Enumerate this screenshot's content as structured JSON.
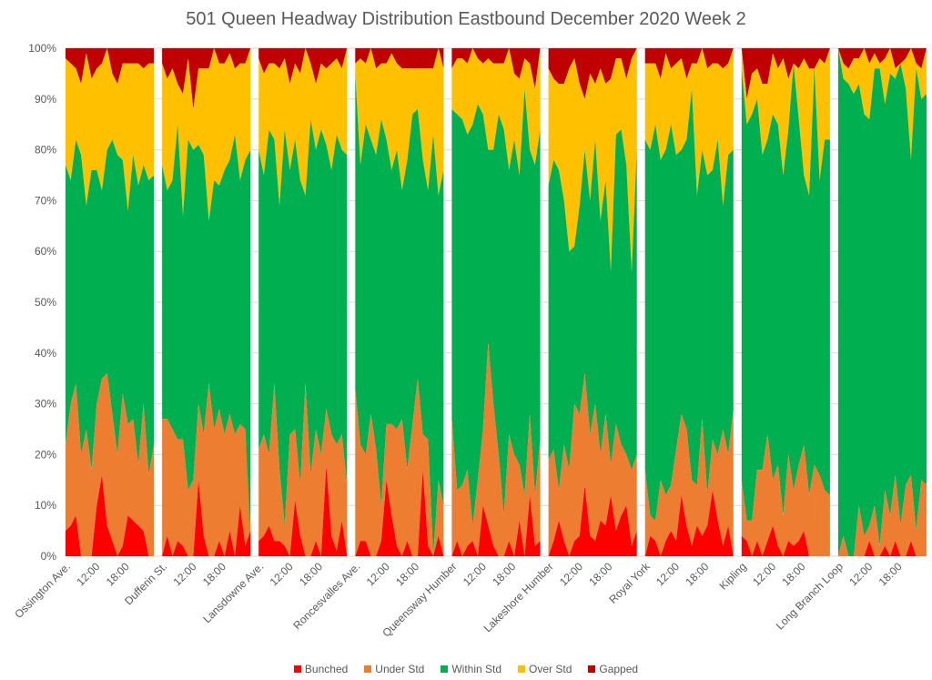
{
  "chart_data": {
    "type": "area",
    "stacked": "percent",
    "title": "501 Queen  Headway Distribution Eastbound December 2020 Week 2",
    "xlabel": "",
    "ylabel": "",
    "ylim": [
      0,
      100
    ],
    "yticks": [
      "0%",
      "10%",
      "20%",
      "30%",
      "40%",
      "50%",
      "60%",
      "70%",
      "80%",
      "90%",
      "100%"
    ],
    "grid": true,
    "legend_position": "bottom",
    "series_names": [
      "Bunched",
      "Under Std",
      "Within Std",
      "Over Std",
      "Gapped"
    ],
    "series_colors": {
      "Bunched": "#ff0000",
      "Under Std": "#ed7d31",
      "Within Std": "#00b050",
      "Over Std": "#ffc000",
      "Gapped": "#c00000"
    },
    "x_tick_labels": [
      "Ossington Ave.",
      "12:00",
      "18:00",
      "Dufferin St.",
      "12:00",
      "18:00",
      "Lansdowne Ave.",
      "12:00",
      "18:00",
      "Roncesvalles Ave.",
      "12:00",
      "18:00",
      "Queensway Humber",
      "12:00",
      "18:00",
      "Lakeshore Humber",
      "12:00",
      "18:00",
      "Royal York",
      "12:00",
      "18:00",
      "Kipling",
      "12:00",
      "18:00",
      "Long Branch Loop",
      "12:00",
      "18:00"
    ],
    "stations": [
      {
        "name": "Ossington Ave.",
        "note": "cumulative upper bounds per sample: bunched, under, within, over (gapped fills to 100)",
        "bunched": [
          5,
          6,
          8,
          0,
          0,
          0,
          10,
          16,
          6,
          3,
          0,
          2,
          8,
          7,
          6,
          5,
          0,
          0
        ],
        "under": [
          22,
          30,
          34,
          20,
          25,
          17,
          30,
          35,
          36,
          28,
          20,
          32,
          26,
          27,
          18,
          30,
          16,
          22
        ],
        "within": [
          77,
          74,
          82,
          79,
          69,
          76,
          76,
          72,
          80,
          82,
          79,
          78,
          68,
          79,
          73,
          77,
          74,
          75
        ],
        "over": [
          98,
          97,
          96,
          93,
          99,
          94,
          96,
          97,
          100,
          95,
          93,
          97,
          97,
          97,
          97,
          96,
          97,
          97
        ]
      },
      {
        "name": "Dufferin St.",
        "bunched": [
          0,
          4,
          0,
          3,
          2,
          0,
          0,
          15,
          4,
          0,
          0,
          3,
          0,
          5,
          0,
          10,
          2,
          5
        ],
        "under": [
          27,
          27,
          25,
          23,
          23,
          13,
          15,
          30,
          24,
          34,
          25,
          29,
          24,
          28,
          24,
          26,
          25,
          0
        ],
        "within": [
          77,
          72,
          74,
          85,
          67,
          82,
          80,
          81,
          79,
          66,
          74,
          73,
          76,
          78,
          83,
          74,
          78,
          80
        ],
        "over": [
          97,
          94,
          96,
          93,
          91,
          98,
          88,
          96,
          96,
          96,
          100,
          97,
          97,
          99,
          96,
          97,
          97,
          100
        ]
      },
      {
        "name": "Lansdowne Ave.",
        "bunched": [
          3,
          4,
          6,
          3,
          3,
          2,
          0,
          11,
          4,
          0,
          0,
          3,
          0,
          18,
          4,
          1,
          7,
          0
        ],
        "under": [
          21,
          24,
          20,
          34,
          17,
          6,
          24,
          25,
          14,
          34,
          16,
          25,
          20,
          29,
          24,
          22,
          24,
          14
        ],
        "within": [
          80,
          75,
          84,
          82,
          69,
          84,
          76,
          82,
          74,
          71,
          86,
          80,
          84,
          81,
          76,
          83,
          80,
          79
        ],
        "over": [
          98,
          95,
          97,
          97,
          96,
          98,
          93,
          97,
          95,
          100,
          97,
          93,
          97,
          96,
          97,
          98,
          96,
          100
        ]
      },
      {
        "name": "Roncesvalles Ave.",
        "bunched": [
          0,
          3,
          3,
          0,
          0,
          3,
          15,
          8,
          2,
          0,
          3,
          0,
          0,
          17,
          2,
          0,
          4,
          0
        ],
        "under": [
          33,
          22,
          20,
          28,
          21,
          10,
          26,
          26,
          25,
          27,
          17,
          26,
          35,
          24,
          23,
          0,
          15,
          10
        ],
        "within": [
          95,
          77,
          85,
          82,
          79,
          86,
          82,
          76,
          80,
          72,
          78,
          87,
          88,
          78,
          72,
          83,
          71,
          76
        ],
        "over": [
          97,
          98,
          97,
          100,
          96,
          97,
          97,
          99,
          97,
          96,
          96,
          96,
          96,
          96,
          96,
          96,
          100,
          96
        ]
      },
      {
        "name": "Queensway Humber",
        "bunched": [
          0,
          3,
          0,
          2,
          3,
          0,
          10,
          6,
          2,
          0,
          0,
          3,
          0,
          7,
          0,
          12,
          2,
          3
        ],
        "under": [
          27,
          13,
          14,
          17,
          6,
          15,
          25,
          42,
          30,
          20,
          8,
          24,
          20,
          18,
          12,
          28,
          12,
          23
        ],
        "within": [
          88,
          87,
          86,
          83,
          85,
          89,
          87,
          80,
          80,
          87,
          84,
          76,
          82,
          75,
          92,
          80,
          77,
          84
        ],
        "over": [
          96,
          98,
          98,
          97,
          100,
          98,
          97,
          98,
          97,
          97,
          97,
          100,
          95,
          94,
          98,
          97,
          92,
          100
        ]
      },
      {
        "name": "Lakeshore Humber",
        "bunched": [
          0,
          3,
          7,
          3,
          0,
          3,
          4,
          14,
          4,
          3,
          7,
          6,
          12,
          5,
          8,
          10,
          2,
          5
        ],
        "under": [
          19,
          21,
          13,
          22,
          17,
          30,
          28,
          36,
          24,
          30,
          20,
          28,
          18,
          26,
          22,
          20,
          17,
          20
        ],
        "within": [
          73,
          78,
          76,
          70,
          60,
          61,
          69,
          80,
          70,
          82,
          66,
          74,
          56,
          83,
          84,
          77,
          56,
          80
        ],
        "over": [
          96,
          94,
          93,
          93,
          96,
          98,
          93,
          90,
          95,
          93,
          96,
          93,
          94,
          98,
          98,
          94,
          98,
          100
        ]
      },
      {
        "name": "Royal York",
        "bunched": [
          0,
          4,
          3,
          0,
          3,
          5,
          3,
          12,
          6,
          2,
          6,
          4,
          6,
          13,
          7,
          2,
          6,
          0
        ],
        "under": [
          17,
          8,
          7,
          15,
          12,
          14,
          21,
          28,
          25,
          15,
          14,
          27,
          12,
          23,
          20,
          25,
          20,
          29
        ],
        "within": [
          82,
          80,
          85,
          78,
          80,
          85,
          79,
          80,
          82,
          92,
          71,
          80,
          75,
          76,
          82,
          69,
          79,
          80
        ],
        "over": [
          97,
          97,
          97,
          94,
          99,
          96,
          97,
          98,
          94,
          97,
          97,
          100,
          96,
          97,
          97,
          96,
          97,
          100
        ]
      },
      {
        "name": "Kipling",
        "bunched": [
          4,
          3,
          0,
          3,
          0,
          3,
          6,
          2,
          0,
          3,
          2,
          3,
          5,
          0,
          0,
          0,
          0,
          0
        ],
        "under": [
          15,
          7,
          7,
          17,
          17,
          24,
          15,
          18,
          8,
          20,
          13,
          18,
          22,
          12,
          18,
          16,
          13,
          12
        ],
        "within": [
          96,
          85,
          87,
          90,
          79,
          82,
          87,
          85,
          75,
          84,
          97,
          86,
          75,
          71,
          96,
          74,
          82,
          82
        ],
        "over": [
          100,
          90,
          95,
          96,
          93,
          93,
          99,
          96,
          98,
          94,
          97,
          96,
          98,
          96,
          95,
          98,
          97,
          100
        ]
      },
      {
        "name": "Long Branch Loop",
        "bunched": [
          0,
          0,
          0,
          0,
          0,
          0,
          3,
          0,
          0,
          2,
          0,
          3,
          0,
          0,
          3,
          0,
          0,
          0
        ],
        "under": [
          0,
          4,
          0,
          0,
          10,
          4,
          6,
          10,
          2,
          13,
          8,
          16,
          6,
          14,
          16,
          5,
          15,
          14
        ],
        "within": [
          100,
          94,
          93,
          91,
          93,
          87,
          86,
          96,
          96,
          89,
          95,
          94,
          97,
          92,
          78,
          96,
          90,
          91
        ],
        "over": [
          100,
          97,
          96,
          98,
          98,
          100,
          97,
          99,
          97,
          98,
          100,
          96,
          97,
          98,
          100,
          97,
          96,
          100
        ]
      }
    ]
  }
}
